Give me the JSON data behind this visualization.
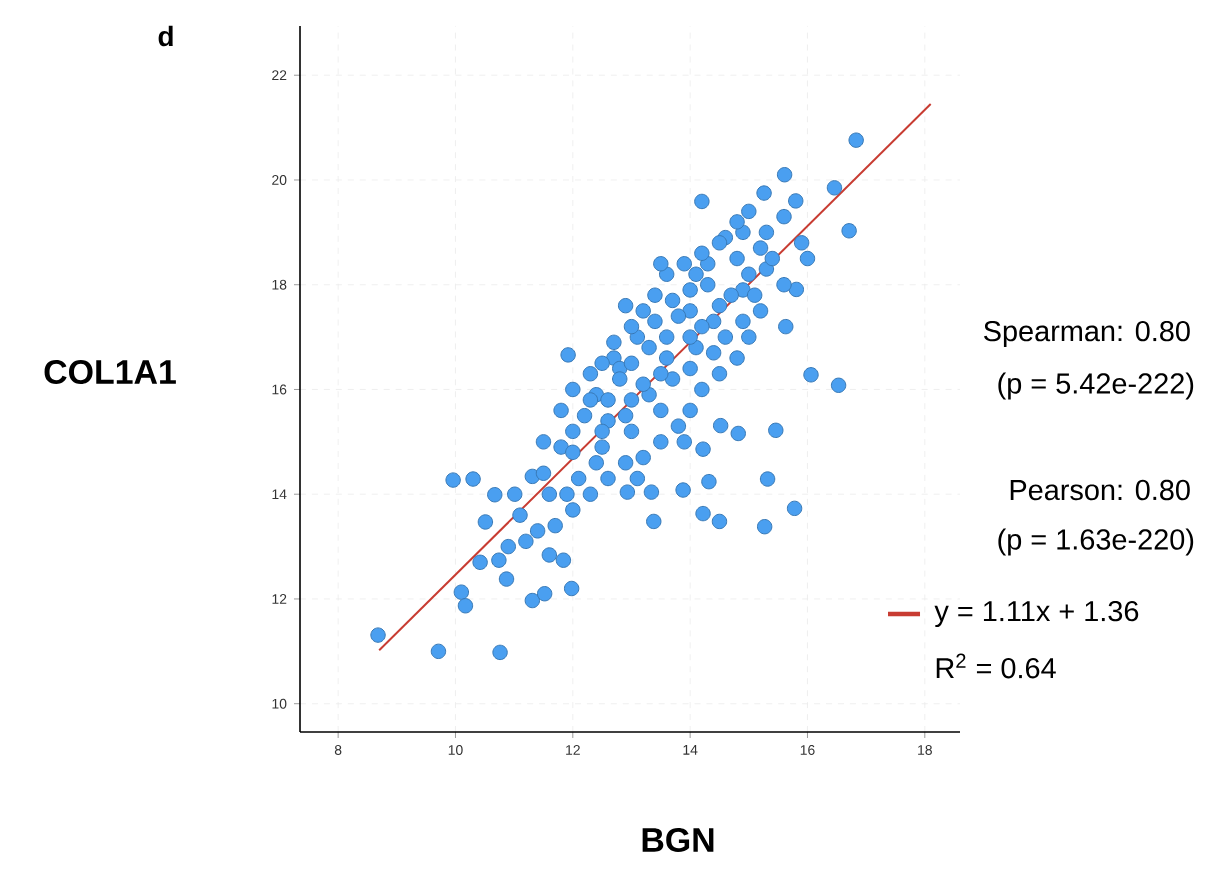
{
  "chart_data": {
    "type": "scatter",
    "xlabel": "BGN",
    "ylabel": "COL1A1",
    "annotations": [
      "d",
      "Spearman: 0.80",
      "(p = 5.42e-222)",
      "Pearson: 0.80",
      "(p = 1.63e-220)",
      "R$^{2}$ = 0.64"
    ],
    "xlim": [
      7.35,
      18.6
    ],
    "ylim": [
      9.46,
      22.94
    ],
    "xticks": [
      8,
      10,
      12,
      14,
      16,
      18
    ],
    "yticks": [
      10,
      12,
      14,
      16,
      18,
      20,
      22
    ],
    "grid": true,
    "legend": "right",
    "series": [
      {
        "color": "#4a9ff0",
        "x": [
          12.4,
          12.7,
          13.1,
          13.4,
          13.7,
          14.0,
          14.3,
          14.6,
          14.9,
          15.2,
          12.1,
          12.5,
          12.9,
          13.3,
          13.7,
          14.1,
          14.4,
          14.9,
          15.3,
          11.8,
          12.3,
          12.8,
          13.2,
          13.6,
          14.0,
          14.4,
          14.9,
          13.9,
          13.1,
          12.6,
          8.68,
          9.71,
          10.76,
          9.96,
          10.3,
          10.1,
          10.17,
          10.51,
          11.31,
          11.52,
          11.98,
          11.92,
          16.83,
          15.61,
          14.2,
          15.26,
          16.46,
          16.71,
          16.06,
          16.53,
          16.0,
          15.81,
          15.63,
          15.46,
          15.32,
          15.27,
          15.78,
          14.5,
          14.22,
          13.38,
          14.32,
          13.88,
          14.22,
          14.52,
          14.82,
          13.34,
          12.93,
          11.6,
          11.84,
          10.74,
          10.87,
          10.42,
          10.67,
          11.01,
          11.31,
          11.5,
          11.8,
          12.0,
          12.3,
          12.5,
          12.7,
          13.0,
          13.2,
          13.4,
          13.6,
          13.9,
          14.2,
          14.5,
          14.8,
          15.0,
          15.3,
          15.6,
          15.8,
          15.9,
          15.6,
          15.2,
          15.0,
          14.8,
          14.5,
          14.2,
          14.0,
          13.8,
          13.5,
          13.2,
          12.9,
          12.6,
          12.3,
          12.0,
          11.7,
          11.4,
          11.2,
          11.5,
          12.0,
          12.5,
          13.0,
          13.5,
          14.0,
          14.5,
          15.0,
          12.2,
          12.8,
          13.3,
          13.8,
          14.3,
          14.8,
          13.0,
          13.6,
          14.2,
          14.7,
          12.6,
          12.0,
          11.6,
          11.1,
          10.9,
          11.9,
          12.4,
          13.0,
          13.5,
          14.0,
          14.6,
          15.1,
          15.4,
          14.1,
          13.5,
          12.9
        ],
        "values": [
          15.9,
          16.6,
          17.0,
          17.3,
          17.7,
          17.9,
          18.4,
          18.9,
          19.0,
          18.7,
          14.3,
          14.9,
          15.5,
          15.9,
          16.2,
          16.8,
          17.3,
          17.9,
          18.3,
          14.9,
          15.8,
          16.4,
          16.1,
          16.6,
          17.5,
          16.7,
          17.3,
          15.0,
          14.3,
          15.4,
          11.31,
          11.0,
          10.98,
          14.27,
          14.29,
          12.13,
          11.87,
          13.47,
          11.97,
          12.1,
          12.2,
          16.66,
          20.76,
          20.1,
          19.59,
          19.75,
          19.85,
          19.03,
          16.28,
          16.08,
          18.5,
          17.91,
          17.2,
          15.22,
          14.29,
          13.38,
          13.73,
          13.48,
          13.63,
          13.48,
          14.24,
          14.08,
          14.86,
          15.31,
          15.16,
          14.04,
          14.04,
          12.84,
          12.74,
          12.74,
          12.38,
          12.7,
          13.99,
          14.0,
          14.34,
          15.0,
          15.6,
          16.0,
          16.3,
          16.5,
          16.9,
          17.2,
          17.5,
          17.8,
          18.2,
          18.4,
          18.6,
          18.8,
          19.2,
          19.4,
          19.0,
          19.3,
          19.6,
          18.8,
          18.0,
          17.5,
          17.0,
          16.6,
          16.3,
          16.0,
          15.6,
          15.3,
          15.0,
          14.7,
          14.6,
          14.3,
          14.0,
          13.7,
          13.4,
          13.3,
          13.1,
          14.4,
          14.8,
          15.2,
          15.8,
          16.3,
          17.0,
          17.6,
          18.2,
          15.5,
          16.2,
          16.8,
          17.4,
          18.0,
          18.5,
          16.5,
          17.0,
          17.2,
          17.8,
          15.8,
          15.2,
          14.0,
          13.6,
          13.0,
          14.0,
          14.6,
          15.2,
          15.6,
          16.4,
          17.0,
          17.8,
          18.5,
          18.2,
          18.4,
          17.6
        ]
      },
      {
        "type": "line",
        "name": "y = 1.11x + 1.36",
        "color": "#c83c32",
        "x": [
          8.7,
          18.1
        ],
        "values": [
          11.02,
          21.45
        ]
      }
    ]
  }
}
